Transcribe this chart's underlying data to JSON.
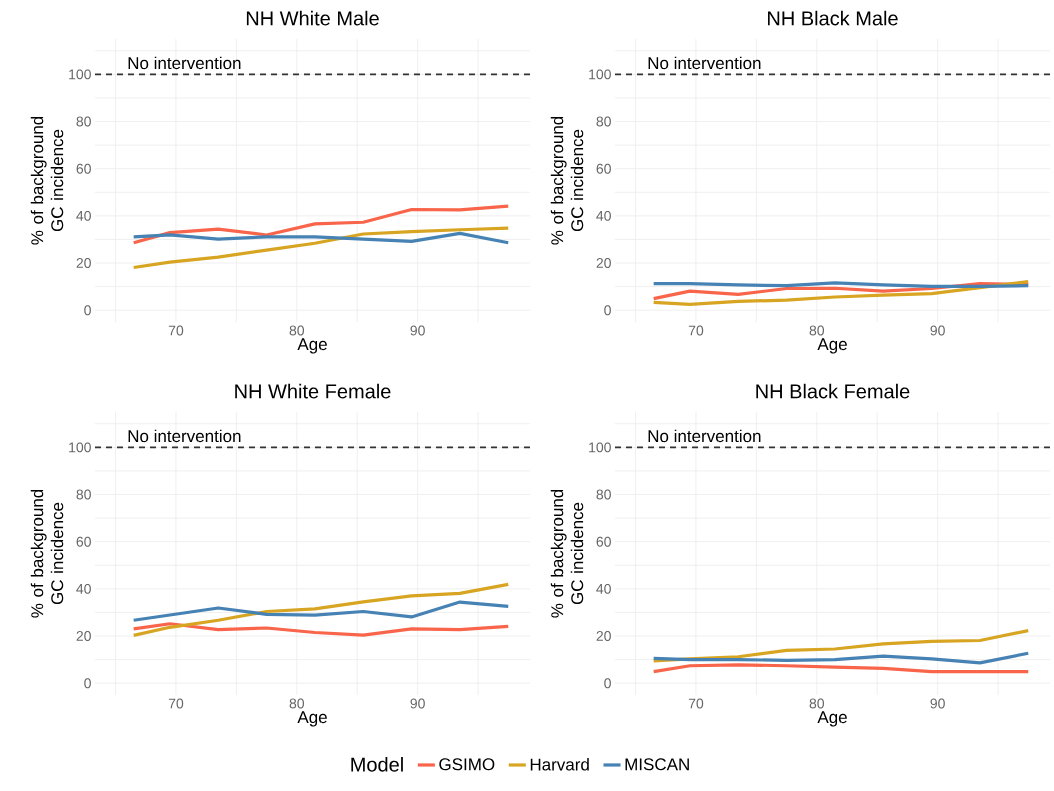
{
  "chart_data": [
    {
      "type": "line",
      "title": "NH White Male",
      "xlabel": "Age",
      "ylabel": "% of background GC incidence",
      "xlim": [
        63.3,
        99.3
      ],
      "ylim": [
        -5,
        115
      ],
      "xticks": [
        {
          "value": 65,
          "label": null
        },
        70,
        {
          "value": 75,
          "label": null
        },
        80,
        {
          "value": 85,
          "label": null
        },
        90,
        {
          "value": 95,
          "label": null
        }
      ],
      "yticks": [
        0,
        {
          "value": 10,
          "label": null
        },
        20,
        {
          "value": 30,
          "label": null
        },
        40,
        {
          "value": 50,
          "label": null
        },
        60,
        {
          "value": 70,
          "label": null
        },
        80,
        {
          "value": 90,
          "label": null
        },
        100,
        {
          "value": 110,
          "label": null
        }
      ],
      "grid": true,
      "x": [
        66.5,
        69.5,
        73.5,
        77.5,
        81.5,
        85.5,
        89.5,
        93.5,
        97.5
      ],
      "ref_lines": [
        {
          "axis": "y",
          "value": 100,
          "label": "No intervention",
          "color": "#333333",
          "line_style": "dashed"
        }
      ],
      "series": [
        {
          "color": "#f8654a",
          "values": [
            28.6,
            32.9,
            34.4,
            31.9,
            36.6,
            37.3,
            42.7,
            42.5,
            44.1
          ]
        },
        {
          "color": "#d8a523",
          "values": [
            18.1,
            20.4,
            22.5,
            25.5,
            28.4,
            32.3,
            33.3,
            34.1,
            34.8
          ]
        },
        {
          "color": "#4682b4",
          "values": [
            31.1,
            31.9,
            30.1,
            31.1,
            31.1,
            30.1,
            29.2,
            32.6,
            28.6
          ]
        }
      ]
    },
    {
      "type": "line",
      "title": "NH Black Male",
      "xlabel": "Age",
      "ylabel": "% of background GC incidence",
      "xlim": [
        63.3,
        99.3
      ],
      "ylim": [
        -5,
        115
      ],
      "xticks": [
        {
          "value": 65,
          "label": null
        },
        70,
        {
          "value": 75,
          "label": null
        },
        80,
        {
          "value": 85,
          "label": null
        },
        90,
        {
          "value": 95,
          "label": null
        }
      ],
      "yticks": [
        0,
        {
          "value": 10,
          "label": null
        },
        20,
        {
          "value": 30,
          "label": null
        },
        40,
        {
          "value": 50,
          "label": null
        },
        60,
        {
          "value": 70,
          "label": null
        },
        80,
        {
          "value": 90,
          "label": null
        },
        100,
        {
          "value": 110,
          "label": null
        }
      ],
      "grid": true,
      "x": [
        66.5,
        69.5,
        73.5,
        77.5,
        81.5,
        85.5,
        89.5,
        93.5,
        97.5
      ],
      "ref_lines": [
        {
          "axis": "y",
          "value": 100,
          "label": "No intervention",
          "color": "#333333",
          "line_style": "dashed"
        }
      ],
      "series": [
        {
          "color": "#f8654a",
          "values": [
            4.9,
            8.1,
            6.7,
            9.2,
            9.3,
            8.1,
            9.2,
            11.3,
            10.8
          ]
        },
        {
          "color": "#d8a523",
          "values": [
            3.3,
            2.5,
            3.7,
            4.3,
            5.6,
            6.4,
            7.0,
            9.6,
            12.1
          ]
        },
        {
          "color": "#4682b4",
          "values": [
            11.3,
            11.3,
            10.7,
            10.4,
            11.6,
            10.7,
            10.1,
            10.1,
            10.4
          ]
        }
      ]
    },
    {
      "type": "line",
      "title": "NH White Female",
      "xlabel": "Age",
      "ylabel": "% of background GC incidence",
      "xlim": [
        63.3,
        99.3
      ],
      "ylim": [
        -5,
        115
      ],
      "xticks": [
        {
          "value": 65,
          "label": null
        },
        70,
        {
          "value": 75,
          "label": null
        },
        80,
        {
          "value": 85,
          "label": null
        },
        90,
        {
          "value": 95,
          "label": null
        }
      ],
      "yticks": [
        0,
        {
          "value": 10,
          "label": null
        },
        20,
        {
          "value": 30,
          "label": null
        },
        40,
        {
          "value": 50,
          "label": null
        },
        60,
        {
          "value": 70,
          "label": null
        },
        80,
        {
          "value": 90,
          "label": null
        },
        100,
        {
          "value": 110,
          "label": null
        }
      ],
      "grid": true,
      "x": [
        66.5,
        69.5,
        73.5,
        77.5,
        81.5,
        85.5,
        89.5,
        93.5,
        97.5
      ],
      "ref_lines": [
        {
          "axis": "y",
          "value": 100,
          "label": "No intervention",
          "color": "#333333",
          "line_style": "dashed"
        }
      ],
      "series": [
        {
          "color": "#f8654a",
          "values": [
            23.0,
            25.2,
            22.7,
            23.4,
            21.5,
            20.4,
            23.0,
            22.7,
            24.1
          ]
        },
        {
          "color": "#d8a523",
          "values": [
            20.3,
            23.7,
            26.7,
            30.4,
            31.5,
            34.5,
            37.0,
            38.1,
            41.9
          ]
        },
        {
          "color": "#4682b4",
          "values": [
            26.7,
            28.9,
            31.9,
            29.2,
            28.9,
            30.4,
            28.1,
            34.4,
            32.6
          ]
        }
      ]
    },
    {
      "type": "line",
      "title": "NH Black Female",
      "xlabel": "Age",
      "ylabel": "% of background GC incidence",
      "xlim": [
        63.3,
        99.3
      ],
      "ylim": [
        -5,
        115
      ],
      "xticks": [
        {
          "value": 65,
          "label": null
        },
        70,
        {
          "value": 75,
          "label": null
        },
        80,
        {
          "value": 85,
          "label": null
        },
        90,
        {
          "value": 95,
          "label": null
        }
      ],
      "yticks": [
        0,
        {
          "value": 10,
          "label": null
        },
        20,
        {
          "value": 30,
          "label": null
        },
        40,
        {
          "value": 50,
          "label": null
        },
        60,
        {
          "value": 70,
          "label": null
        },
        80,
        {
          "value": 90,
          "label": null
        },
        100,
        {
          "value": 110,
          "label": null
        }
      ],
      "grid": true,
      "x": [
        66.5,
        69.5,
        73.5,
        77.5,
        81.5,
        85.5,
        89.5,
        93.5,
        97.5
      ],
      "ref_lines": [
        {
          "axis": "y",
          "value": 100,
          "label": "No intervention",
          "color": "#333333",
          "line_style": "dashed"
        }
      ],
      "legend": "bottom",
      "legend_title": "Model",
      "series": [
        {
          "name": "GSIMO",
          "color": "#f8654a",
          "values": [
            4.9,
            7.4,
            7.8,
            7.4,
            6.8,
            6.3,
            4.9,
            4.9,
            4.9
          ]
        },
        {
          "name": "Harvard",
          "color": "#d8a523",
          "values": [
            9.5,
            10.3,
            11.2,
            13.9,
            14.5,
            16.7,
            17.7,
            18.1,
            22.3
          ]
        },
        {
          "name": "MISCAN",
          "color": "#4682b4",
          "values": [
            10.5,
            10.0,
            10.0,
            9.7,
            10.0,
            11.5,
            10.3,
            8.6,
            12.7
          ]
        }
      ]
    }
  ]
}
